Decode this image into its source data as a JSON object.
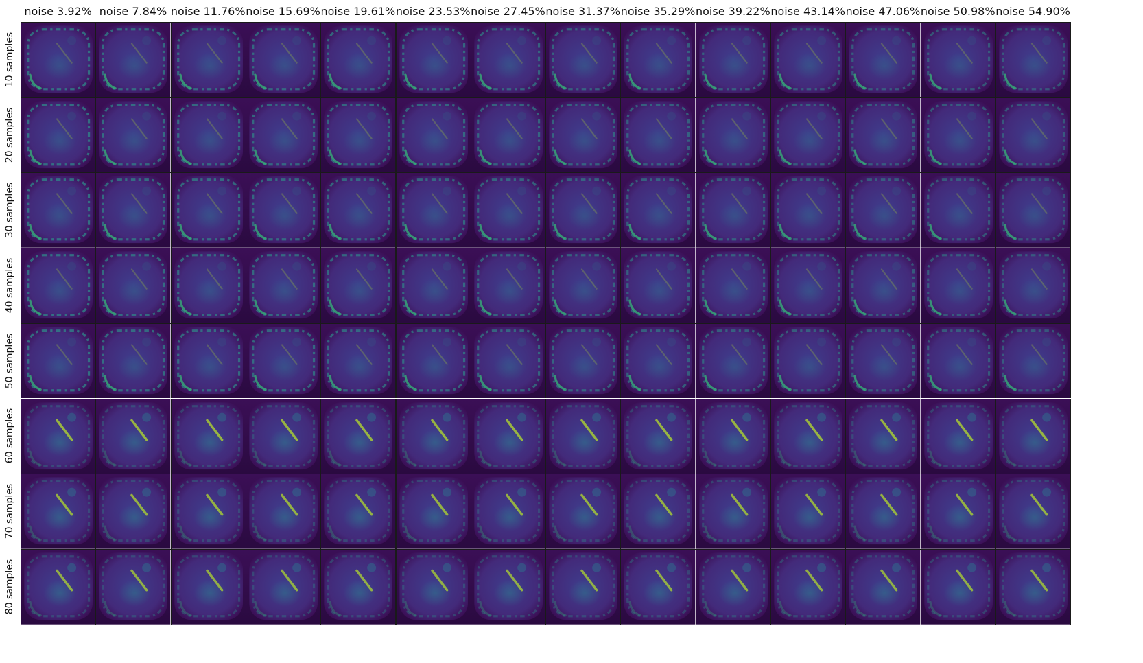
{
  "figure": {
    "column_titles": [
      "noise 3.92%",
      "noise 7.84%",
      "noise 11.76%",
      "noise 15.69%",
      "noise 19.61%",
      "noise 23.53%",
      "noise 27.45%",
      "noise 31.37%",
      "noise 35.29%",
      "noise 39.22%",
      "noise 43.14%",
      "noise 47.06%",
      "noise 50.98%",
      "noise 54.90%"
    ],
    "row_labels": [
      "10 samples",
      "20 samples",
      "30 samples",
      "40 samples",
      "50 samples",
      "60 samples",
      "70 samples",
      "80 samples"
    ],
    "colormap": "viridis",
    "colors": {
      "background_dark": "#3b0f56",
      "mid": "#3e3d8c",
      "highlight": "#35b779",
      "bright": "#b5de2b"
    },
    "groups": [
      {
        "rows": [
          "10 samples",
          "20 samples",
          "30 samples",
          "40 samples",
          "50 samples"
        ],
        "description_tag": "ring-dominant"
      },
      {
        "rows": [
          "60 samples",
          "70 samples",
          "80 samples"
        ],
        "description_tag": "streak-dominant"
      }
    ]
  }
}
